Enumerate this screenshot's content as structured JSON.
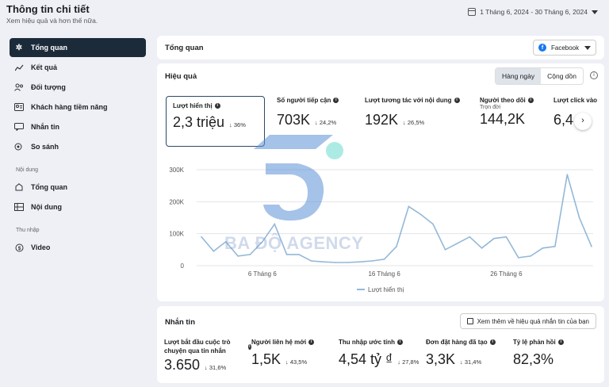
{
  "header": {
    "title": "Thông tin chi tiết",
    "subtitle": "Xem hiệu quả và hơn thế nữa.",
    "date_range": "1 Tháng 6, 2024 - 30 Tháng 6, 2024"
  },
  "sidebar": {
    "items": [
      {
        "label": "Tổng quan",
        "icon": "overview-icon"
      },
      {
        "label": "Kết quả",
        "icon": "results-icon"
      },
      {
        "label": "Đối tượng",
        "icon": "audience-icon"
      },
      {
        "label": "Khách hàng tiềm năng",
        "icon": "leads-icon"
      },
      {
        "label": "Nhắn tin",
        "icon": "messaging-icon"
      },
      {
        "label": "So sánh",
        "icon": "compare-icon"
      }
    ],
    "section_content": "Nội dung",
    "content_items": [
      {
        "label": "Tổng quan"
      },
      {
        "label": "Nội dung"
      }
    ],
    "section_income": "Thu nhập",
    "income_items": [
      {
        "label": "Video"
      }
    ]
  },
  "overview_card": {
    "title": "Tổng quan",
    "platform": "Facebook"
  },
  "performance": {
    "title": "Hiệu quả",
    "toggle": [
      "Hàng ngày",
      "Cộng dồn"
    ],
    "metrics": [
      {
        "label": "Lượt hiển thị",
        "value": "2,3 triệu",
        "delta": "36%"
      },
      {
        "label": "Số người tiếp cận",
        "value": "703K",
        "delta": "24,2%"
      },
      {
        "label": "Lượt tương tác với nội dung",
        "value": "192K",
        "delta": "26,5%"
      },
      {
        "label": "Người theo dõi",
        "sub": "Trọn đời",
        "value": "144,2K"
      },
      {
        "label": "Lượt click vào",
        "value": "6,4"
      }
    ]
  },
  "chart_data": {
    "type": "line",
    "series": [
      {
        "name": "Lượt hiển thị",
        "values": [
          90,
          45,
          75,
          30,
          35,
          75,
          130,
          35,
          35,
          15,
          12,
          10,
          10,
          12,
          15,
          20,
          60,
          185,
          160,
          130,
          50,
          70,
          90,
          55,
          85,
          90,
          25,
          30,
          55,
          60,
          285,
          150,
          60
        ]
      }
    ],
    "x_tick_labels": [
      "6 Tháng 6",
      "16 Tháng 6",
      "26 Tháng 6"
    ],
    "y_tick_labels": [
      "0",
      "100K",
      "200K",
      "300K"
    ],
    "ylim": [
      0,
      300000
    ],
    "color": "#93b8d8"
  },
  "messaging": {
    "title": "Nhắn tin",
    "button": "Xem thêm về hiệu quả nhắn tin của bạn",
    "metrics": [
      {
        "label": "Lượt bắt đầu cuộc trò chuyện qua tin nhắn",
        "value": "3.650",
        "delta": "31,6%"
      },
      {
        "label": "Người liên hệ mới",
        "value": "1,5K",
        "delta": "43,5%"
      },
      {
        "label": "Thu nhập ước tính",
        "value": "4,54 tỷ ₫",
        "delta": "27,8%"
      },
      {
        "label": "Đơn đặt hàng đã tạo",
        "value": "3,3K",
        "delta": "31,4%"
      },
      {
        "label": "Tỷ lệ phản hồi",
        "value": "82,3%"
      }
    ]
  },
  "watermark": {
    "text": "BA ĐỘ AGENCY",
    "mark_color": "#5b8fd6",
    "dot_color": "#7fe0d6"
  },
  "colors": {
    "sidebar_active": "#1c2b3a",
    "facebook_blue": "#1877f2"
  }
}
